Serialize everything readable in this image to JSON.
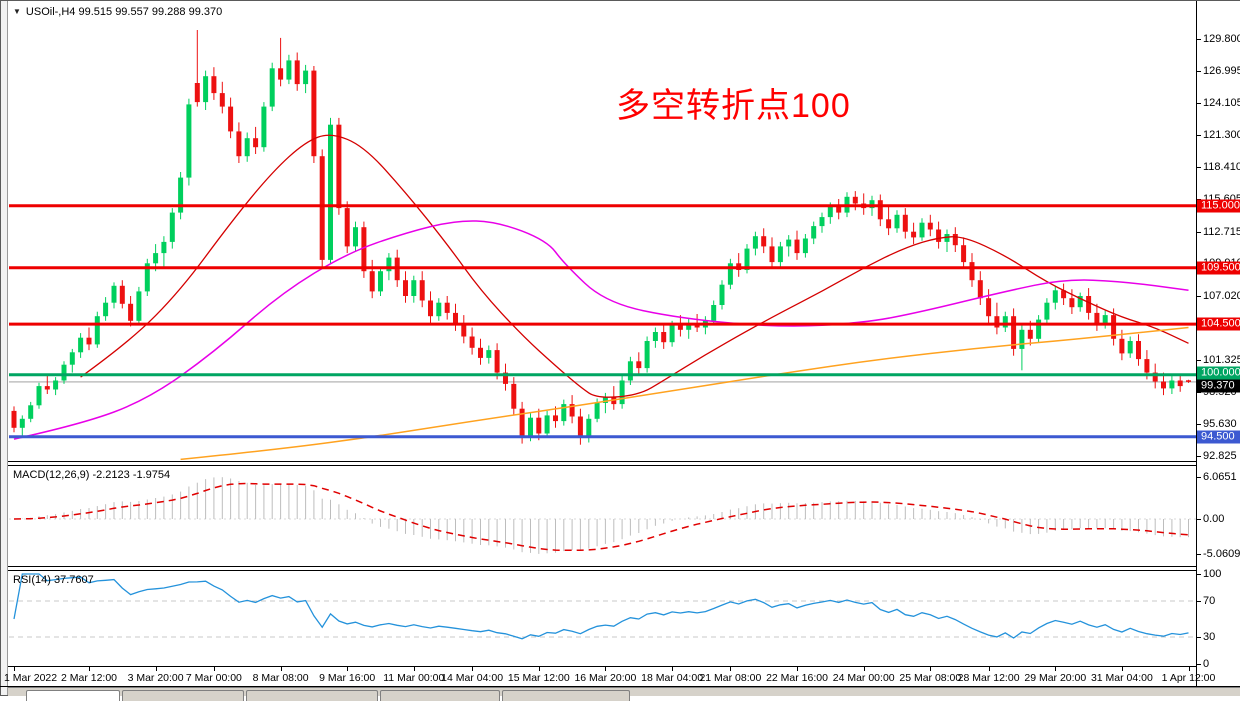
{
  "window": {
    "symbol_period": "USOil-,H4",
    "ohlc": " 99.515 99.557 99.288 99.370",
    "collapse_icon": "▼"
  },
  "main_chart": {
    "annotation": {
      "text": "多空转折点100",
      "color": "#ff0000"
    },
    "price_axis": {
      "ticks": [
        {
          "v": 129.8,
          "t": "129.800"
        },
        {
          "v": 126.995,
          "t": "126.995"
        },
        {
          "v": 124.105,
          "t": "124.105"
        },
        {
          "v": 121.3,
          "t": "121.300"
        },
        {
          "v": 118.41,
          "t": "118.410"
        },
        {
          "v": 115.605,
          "t": "115.605"
        },
        {
          "v": 112.715,
          "t": "112.715"
        },
        {
          "v": 109.91,
          "t": "109.910"
        },
        {
          "v": 107.02,
          "t": "107.020"
        },
        {
          "v": 104.215,
          "t": "104.215"
        },
        {
          "v": 101.325,
          "t": "101.325"
        },
        {
          "v": 98.52,
          "t": "98.520"
        },
        {
          "v": 95.63,
          "t": "95.630"
        },
        {
          "v": 92.825,
          "t": "92.825"
        }
      ]
    },
    "levels": [
      {
        "price": 115.0,
        "label": "115.000",
        "color": "#ee0000",
        "thickness": 3
      },
      {
        "price": 109.5,
        "label": "109.500",
        "color": "#ee0000",
        "thickness": 3
      },
      {
        "price": 104.5,
        "label": "104.500",
        "color": "#ee0000",
        "thickness": 3
      },
      {
        "price": 100.0,
        "label": "100.000",
        "color": "#00a562",
        "thickness": 3
      },
      {
        "price": 94.5,
        "label": "94.500",
        "color": "#3c59d1",
        "thickness": 3
      }
    ],
    "current_price": {
      "value": 99.37,
      "label": "99.370",
      "line_color": "#c0c0c0",
      "label_bg": "#000000"
    }
  },
  "chart_data": {
    "type": "candlestick",
    "symbol": "USOil-",
    "timeframe": "H4",
    "title": "USOil-,H4",
    "ohlc_display": {
      "open": "99.515",
      "high": "99.557",
      "low": "99.288",
      "close": "99.370"
    },
    "price_range": [
      91.5,
      130.8
    ],
    "x_start": "1 Mar 2022 00:00",
    "x_end": "1 Apr 2022 12:00",
    "candle_colors": {
      "up": "#00cf5d",
      "down": "#ed1111"
    },
    "x_axis_labels": [
      {
        "t": "1 Mar 2022",
        "i": 0
      },
      {
        "t": "2 Mar 12:00",
        "i": 9
      },
      {
        "t": "3 Mar 20:00",
        "i": 17
      },
      {
        "t": "7 Mar 00:00",
        "i": 24
      },
      {
        "t": "8 Mar 08:00",
        "i": 32
      },
      {
        "t": "9 Mar 16:00",
        "i": 40
      },
      {
        "t": "11 Mar 00:00",
        "i": 48
      },
      {
        "t": "14 Mar 04:00",
        "i": 55
      },
      {
        "t": "15 Mar 12:00",
        "i": 63
      },
      {
        "t": "16 Mar 20:00",
        "i": 71
      },
      {
        "t": "18 Mar 04:00",
        "i": 79
      },
      {
        "t": "21 Mar 08:00",
        "i": 86
      },
      {
        "t": "22 Mar 16:00",
        "i": 94
      },
      {
        "t": "24 Mar 00:00",
        "i": 102
      },
      {
        "t": "25 Mar 08:00",
        "i": 110
      },
      {
        "t": "28 Mar 12:00",
        "i": 117
      },
      {
        "t": "29 Mar 20:00",
        "i": 125
      },
      {
        "t": "31 Mar 04:00",
        "i": 133
      },
      {
        "t": "1 Apr 12:00",
        "i": 141
      }
    ],
    "candles": [
      [
        96.8,
        97.2,
        94.9,
        95.3
      ],
      [
        95.3,
        96.4,
        94.6,
        96.1
      ],
      [
        96.1,
        97.6,
        95.8,
        97.3
      ],
      [
        97.3,
        99.3,
        97.0,
        99.0
      ],
      [
        99.0,
        100.1,
        98.3,
        98.7
      ],
      [
        98.7,
        99.8,
        98.2,
        99.5
      ],
      [
        99.5,
        101.2,
        99.2,
        100.9
      ],
      [
        100.9,
        102.3,
        100.2,
        102.0
      ],
      [
        102.0,
        103.7,
        101.5,
        103.3
      ],
      [
        103.3,
        104.2,
        102.2,
        102.7
      ],
      [
        102.7,
        105.6,
        102.4,
        105.2
      ],
      [
        105.2,
        106.9,
        104.8,
        106.4
      ],
      [
        106.4,
        108.2,
        105.9,
        107.9
      ],
      [
        107.9,
        108.4,
        105.9,
        106.3
      ],
      [
        106.3,
        107.0,
        104.3,
        104.8
      ],
      [
        104.8,
        107.8,
        104.5,
        107.4
      ],
      [
        107.4,
        110.3,
        107.0,
        109.9
      ],
      [
        109.9,
        111.6,
        109.2,
        110.8
      ],
      [
        110.8,
        112.3,
        109.6,
        111.8
      ],
      [
        111.8,
        114.8,
        111.2,
        114.4
      ],
      [
        114.4,
        118.0,
        113.8,
        117.5
      ],
      [
        117.5,
        124.5,
        116.8,
        124.0
      ],
      [
        125.9,
        130.6,
        123.8,
        124.2
      ],
      [
        124.2,
        127.0,
        123.5,
        126.5
      ],
      [
        126.5,
        127.3,
        124.4,
        125.0
      ],
      [
        125.0,
        126.0,
        123.2,
        123.8
      ],
      [
        123.8,
        124.6,
        121.0,
        121.6
      ],
      [
        121.6,
        122.4,
        118.8,
        119.4
      ],
      [
        119.4,
        121.5,
        118.9,
        121.0
      ],
      [
        121.0,
        122.0,
        119.6,
        120.2
      ],
      [
        120.2,
        124.2,
        119.8,
        123.8
      ],
      [
        123.8,
        127.7,
        123.4,
        127.2
      ],
      [
        127.2,
        129.9,
        125.6,
        126.2
      ],
      [
        126.2,
        128.4,
        125.8,
        127.9
      ],
      [
        127.9,
        128.6,
        125.2,
        125.8
      ],
      [
        125.8,
        127.5,
        125.0,
        127.0
      ],
      [
        127.0,
        127.4,
        118.8,
        119.4
      ],
      [
        119.4,
        120.0,
        109.6,
        110.2
      ],
      [
        110.2,
        122.8,
        109.9,
        122.2
      ],
      [
        122.2,
        122.8,
        114.2,
        114.8
      ],
      [
        114.8,
        115.4,
        110.8,
        111.4
      ],
      [
        111.4,
        113.6,
        111.0,
        113.1
      ],
      [
        113.1,
        113.6,
        108.6,
        109.2
      ],
      [
        109.2,
        110.2,
        106.8,
        107.4
      ],
      [
        107.4,
        109.6,
        107.0,
        109.2
      ],
      [
        109.2,
        110.8,
        108.4,
        110.4
      ],
      [
        110.4,
        111.1,
        107.8,
        108.4
      ],
      [
        108.4,
        109.2,
        106.4,
        107.0
      ],
      [
        107.0,
        108.8,
        106.4,
        108.4
      ],
      [
        108.4,
        109.2,
        106.0,
        106.6
      ],
      [
        106.6,
        107.4,
        104.6,
        105.2
      ],
      [
        105.2,
        106.8,
        104.8,
        106.4
      ],
      [
        106.4,
        107.0,
        104.9,
        105.5
      ],
      [
        105.5,
        106.3,
        103.9,
        104.5
      ],
      [
        104.5,
        105.3,
        102.8,
        103.4
      ],
      [
        103.4,
        104.2,
        101.8,
        102.4
      ],
      [
        102.4,
        103.2,
        100.9,
        101.5
      ],
      [
        101.5,
        102.6,
        101.0,
        102.2
      ],
      [
        102.2,
        102.8,
        99.6,
        100.2
      ],
      [
        100.2,
        101.0,
        98.6,
        99.2
      ],
      [
        99.2,
        99.8,
        96.4,
        97.0
      ],
      [
        97.0,
        97.6,
        93.9,
        94.5
      ],
      [
        94.5,
        96.6,
        94.1,
        96.2
      ],
      [
        96.2,
        97.0,
        94.2,
        94.8
      ],
      [
        94.8,
        96.8,
        94.4,
        96.4
      ],
      [
        96.4,
        97.2,
        95.3,
        95.9
      ],
      [
        95.9,
        97.8,
        95.5,
        97.4
      ],
      [
        97.4,
        98.2,
        95.7,
        96.3
      ],
      [
        96.3,
        97.0,
        93.8,
        94.4
      ],
      [
        94.4,
        96.5,
        94.0,
        96.1
      ],
      [
        96.1,
        97.9,
        95.8,
        97.5
      ],
      [
        97.5,
        98.4,
        96.6,
        98.0
      ],
      [
        98.0,
        99.0,
        96.9,
        97.4
      ],
      [
        97.4,
        99.9,
        97.0,
        99.5
      ],
      [
        99.5,
        101.6,
        99.1,
        101.2
      ],
      [
        101.2,
        102.0,
        100.0,
        100.6
      ],
      [
        100.6,
        103.4,
        100.2,
        103.0
      ],
      [
        103.0,
        104.2,
        102.4,
        103.8
      ],
      [
        103.8,
        104.6,
        102.3,
        102.9
      ],
      [
        102.9,
        104.8,
        102.5,
        104.4
      ],
      [
        104.4,
        105.3,
        103.4,
        104.0
      ],
      [
        104.0,
        105.0,
        103.2,
        104.6
      ],
      [
        104.6,
        105.4,
        103.8,
        104.2
      ],
      [
        104.2,
        105.2,
        103.6,
        104.8
      ],
      [
        104.8,
        106.6,
        104.4,
        106.2
      ],
      [
        106.2,
        108.4,
        105.8,
        108.0
      ],
      [
        108.0,
        110.3,
        107.6,
        109.9
      ],
      [
        109.9,
        110.8,
        108.7,
        109.3
      ],
      [
        109.3,
        111.6,
        109.0,
        111.2
      ],
      [
        111.2,
        112.7,
        110.6,
        112.3
      ],
      [
        112.3,
        113.0,
        110.8,
        111.4
      ],
      [
        111.4,
        112.2,
        109.4,
        110.0
      ],
      [
        110.0,
        111.8,
        109.6,
        111.4
      ],
      [
        111.4,
        112.4,
        110.5,
        112.0
      ],
      [
        112.0,
        112.8,
        110.2,
        110.8
      ],
      [
        110.8,
        112.5,
        110.4,
        112.1
      ],
      [
        112.1,
        113.6,
        111.6,
        113.2
      ],
      [
        113.2,
        114.4,
        112.6,
        114.0
      ],
      [
        114.0,
        115.3,
        113.4,
        114.9
      ],
      [
        114.9,
        115.6,
        113.8,
        114.4
      ],
      [
        114.4,
        116.2,
        114.0,
        115.8
      ],
      [
        115.8,
        116.3,
        114.6,
        115.2
      ],
      [
        115.2,
        116.1,
        114.2,
        114.8
      ],
      [
        114.8,
        115.9,
        114.1,
        115.5
      ],
      [
        115.5,
        116.0,
        113.2,
        113.8
      ],
      [
        113.8,
        114.9,
        112.4,
        113.0
      ],
      [
        113.0,
        114.6,
        112.6,
        114.2
      ],
      [
        114.2,
        114.8,
        112.1,
        112.7
      ],
      [
        112.7,
        113.5,
        111.6,
        112.2
      ],
      [
        112.2,
        113.9,
        111.9,
        113.5
      ],
      [
        113.5,
        114.2,
        112.3,
        112.9
      ],
      [
        112.9,
        113.6,
        111.2,
        111.8
      ],
      [
        111.8,
        112.9,
        110.9,
        112.5
      ],
      [
        112.5,
        113.1,
        110.9,
        111.5
      ],
      [
        111.5,
        112.2,
        109.4,
        110.0
      ],
      [
        110.0,
        110.8,
        107.8,
        108.4
      ],
      [
        108.4,
        109.2,
        106.2,
        106.8
      ],
      [
        106.8,
        107.6,
        104.6,
        105.2
      ],
      [
        105.2,
        106.4,
        103.6,
        104.2
      ],
      [
        104.2,
        105.6,
        103.8,
        105.2
      ],
      [
        105.2,
        105.9,
        101.7,
        102.3
      ],
      [
        102.3,
        104.4,
        100.4,
        104.0
      ],
      [
        104.0,
        104.8,
        102.6,
        103.2
      ],
      [
        103.2,
        105.3,
        102.9,
        104.9
      ],
      [
        104.9,
        106.8,
        104.4,
        106.4
      ],
      [
        106.4,
        107.9,
        105.8,
        107.5
      ],
      [
        107.5,
        108.1,
        106.2,
        106.8
      ],
      [
        106.8,
        107.6,
        105.4,
        106.0
      ],
      [
        106.0,
        107.3,
        105.6,
        107.0
      ],
      [
        107.0,
        107.7,
        104.9,
        105.5
      ],
      [
        105.5,
        106.3,
        103.9,
        104.5
      ],
      [
        104.5,
        105.7,
        104.1,
        105.3
      ],
      [
        105.3,
        105.9,
        102.6,
        103.2
      ],
      [
        103.2,
        104.0,
        101.3,
        101.9
      ],
      [
        101.9,
        103.4,
        101.5,
        103.0
      ],
      [
        103.0,
        103.6,
        100.8,
        101.4
      ],
      [
        101.4,
        102.2,
        99.6,
        100.2
      ],
      [
        100.2,
        101.0,
        98.8,
        99.4
      ],
      [
        99.4,
        100.2,
        98.2,
        98.8
      ],
      [
        98.8,
        99.9,
        98.3,
        99.5
      ],
      [
        99.5,
        100.0,
        98.5,
        99.0
      ],
      [
        99.515,
        99.557,
        99.288,
        99.37
      ]
    ],
    "moving_averages": [
      {
        "name": "ma-fast-red",
        "color": "#d40000",
        "width": 1.3,
        "points": [
          [
            8,
            99.8
          ],
          [
            14,
            103.0
          ],
          [
            20,
            107.5
          ],
          [
            26,
            113.5
          ],
          [
            31,
            118.0
          ],
          [
            35,
            120.7
          ],
          [
            38,
            121.5
          ],
          [
            42,
            120.3
          ],
          [
            47,
            116.2
          ],
          [
            52,
            111.6
          ],
          [
            56,
            107.5
          ],
          [
            61,
            103.5
          ],
          [
            65,
            100.8
          ],
          [
            68,
            98.9
          ],
          [
            70,
            97.9
          ],
          [
            75,
            98.2
          ],
          [
            78,
            99.5
          ],
          [
            83,
            101.8
          ],
          [
            88,
            103.9
          ],
          [
            92,
            105.5
          ],
          [
            97,
            107.4
          ],
          [
            102,
            109.5
          ],
          [
            107,
            111.3
          ],
          [
            111,
            112.2
          ],
          [
            114,
            112.3
          ],
          [
            119,
            110.6
          ],
          [
            124,
            108.2
          ],
          [
            129,
            106.4
          ],
          [
            133,
            105.1
          ],
          [
            137,
            104.2
          ],
          [
            141,
            102.8
          ]
        ]
      },
      {
        "name": "ma-mid-magenta",
        "color": "#e800e8",
        "width": 1.5,
        "points": [
          [
            0,
            94.3
          ],
          [
            8,
            95.6
          ],
          [
            16,
            97.8
          ],
          [
            24,
            102.0
          ],
          [
            32,
            107.2
          ],
          [
            40,
            110.8
          ],
          [
            47,
            112.6
          ],
          [
            53,
            113.7
          ],
          [
            58,
            113.6
          ],
          [
            64,
            111.9
          ],
          [
            66,
            109.9
          ],
          [
            71,
            106.4
          ],
          [
            80,
            105.0
          ],
          [
            92,
            104.2
          ],
          [
            102,
            104.6
          ],
          [
            109,
            105.6
          ],
          [
            119,
            107.4
          ],
          [
            126,
            108.5
          ],
          [
            133,
            108.3
          ],
          [
            141,
            107.5
          ]
        ]
      },
      {
        "name": "ma-slow-orange",
        "color": "#ffa21f",
        "width": 1.5,
        "points": [
          [
            20,
            92.5
          ],
          [
            32,
            93.4
          ],
          [
            44,
            94.6
          ],
          [
            56,
            96.0
          ],
          [
            68,
            97.3
          ],
          [
            80,
            98.7
          ],
          [
            92,
            100.1
          ],
          [
            104,
            101.4
          ],
          [
            116,
            102.4
          ],
          [
            128,
            103.2
          ],
          [
            141,
            104.2
          ]
        ]
      }
    ],
    "indicators": {
      "macd": {
        "label": "MACD(12,26,9) -2.2123 -1.9754",
        "params": [
          12,
          26,
          9
        ],
        "values_display": [
          "-2.2123",
          "-1.9754"
        ],
        "axis_ticks": [
          {
            "v": 6.0651,
            "t": "6.0651"
          },
          {
            "v": 0,
            "t": "0.00"
          },
          {
            "v": -5.0609,
            "t": "-5.0609"
          }
        ],
        "histogram_color": "#bdbdbd",
        "signal_color": "#e00000"
      },
      "rsi": {
        "label": "RSI(14) 37.7607",
        "params": [
          14
        ],
        "value_display": "37.7607",
        "axis_ticks": [
          {
            "v": 100,
            "t": "100"
          },
          {
            "v": 70,
            "t": "70"
          },
          {
            "v": 30,
            "t": "30"
          },
          {
            "v": 0,
            "t": "0"
          }
        ],
        "line_color": "#2492db",
        "level_lines": [
          70,
          30
        ]
      }
    }
  }
}
